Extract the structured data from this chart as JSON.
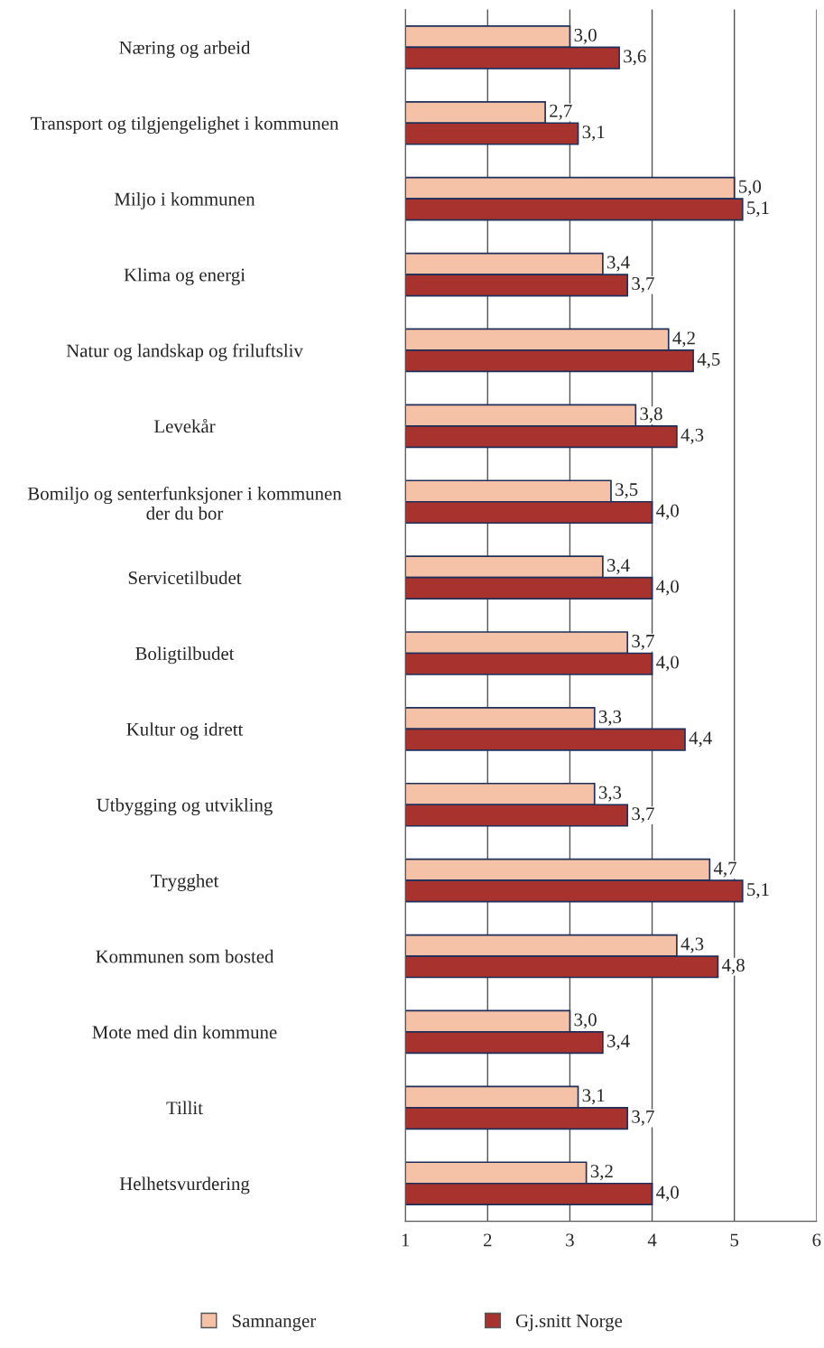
{
  "chart_data": {
    "type": "bar",
    "orientation": "horizontal",
    "categories": [
      "Næring og arbeid",
      "Transport og tilgjengelighet i kommunen",
      "Miljo i kommunen",
      "Klima og energi",
      "Natur og landskap og friluftsliv",
      "Levekår",
      "Bomiljo og senterfunksjoner i kommunen\nder du bor",
      "Servicetilbudet",
      "Boligtilbudet",
      "Kultur og idrett",
      "Utbygging og utvikling",
      "Trygghet",
      "Kommunen som bosted",
      "Mote med din kommune",
      "Tillit",
      "Helhetsvurdering"
    ],
    "series": [
      {
        "name": "Samnanger",
        "color": "#f5c2a8",
        "values": [
          3.0,
          2.7,
          5.0,
          3.4,
          4.2,
          3.8,
          3.5,
          3.4,
          3.7,
          3.3,
          3.3,
          4.7,
          4.3,
          3.0,
          3.1,
          3.2
        ],
        "value_labels": [
          "3,0",
          "2,7",
          "5,0",
          "3,4",
          "4,2",
          "3,8",
          "3,5",
          "3,4",
          "3,7",
          "3,3",
          "3,3",
          "4,7",
          "4,3",
          "3,0",
          "3,1",
          "3,2"
        ]
      },
      {
        "name": "Gj.snitt Norge",
        "color": "#a8322e",
        "values": [
          3.6,
          3.1,
          5.1,
          3.7,
          4.5,
          4.3,
          4.0,
          4.0,
          4.0,
          4.4,
          3.7,
          5.1,
          4.8,
          3.4,
          3.7,
          4.0
        ],
        "value_labels": [
          "3,6",
          "3,1",
          "5,1",
          "3,7",
          "4,5",
          "4,3",
          "4,0",
          "4,0",
          "4,0",
          "4,4",
          "3,7",
          "5,1",
          "4,8",
          "3,4",
          "3,7",
          "4,0"
        ]
      }
    ],
    "xlim": [
      1,
      6
    ],
    "xticks": [
      1,
      2,
      3,
      4,
      5,
      6
    ],
    "grid": "x",
    "legend": "bottom"
  }
}
